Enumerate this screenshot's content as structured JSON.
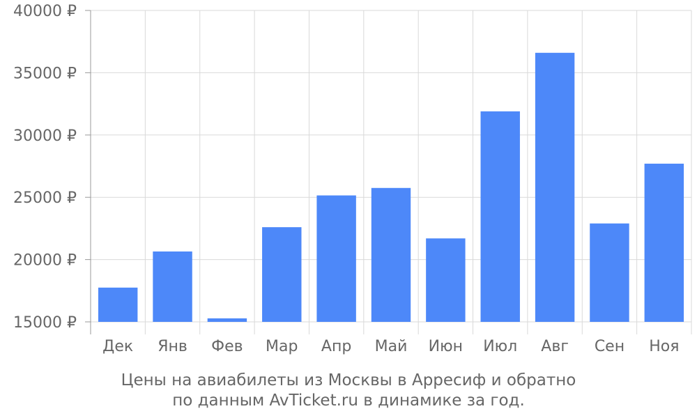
{
  "chart_data": {
    "type": "bar",
    "categories": [
      "Дек",
      "Янв",
      "Фев",
      "Мар",
      "Апр",
      "Май",
      "Июн",
      "Июл",
      "Авг",
      "Сен",
      "Ноя"
    ],
    "values": [
      17750,
      20650,
      15280,
      22600,
      25150,
      25750,
      21700,
      31900,
      36600,
      22900,
      27700
    ],
    "ylim": [
      15000,
      40000
    ],
    "yticks": [
      15000,
      20000,
      25000,
      30000,
      35000,
      40000
    ],
    "ytick_labels": [
      "15000 ₽",
      "20000 ₽",
      "25000 ₽",
      "30000 ₽",
      "35000 ₽",
      "40000 ₽"
    ],
    "grid": true,
    "colors": {
      "bar": "#4d88f9",
      "grid": "#d9d9d9",
      "axis": "#999999",
      "text": "#666666"
    }
  },
  "caption": {
    "line1": "Цены на авиабилеты из Москвы в Арресиф и обратно",
    "line2": "по данным AvTicket.ru в динамике за год."
  }
}
